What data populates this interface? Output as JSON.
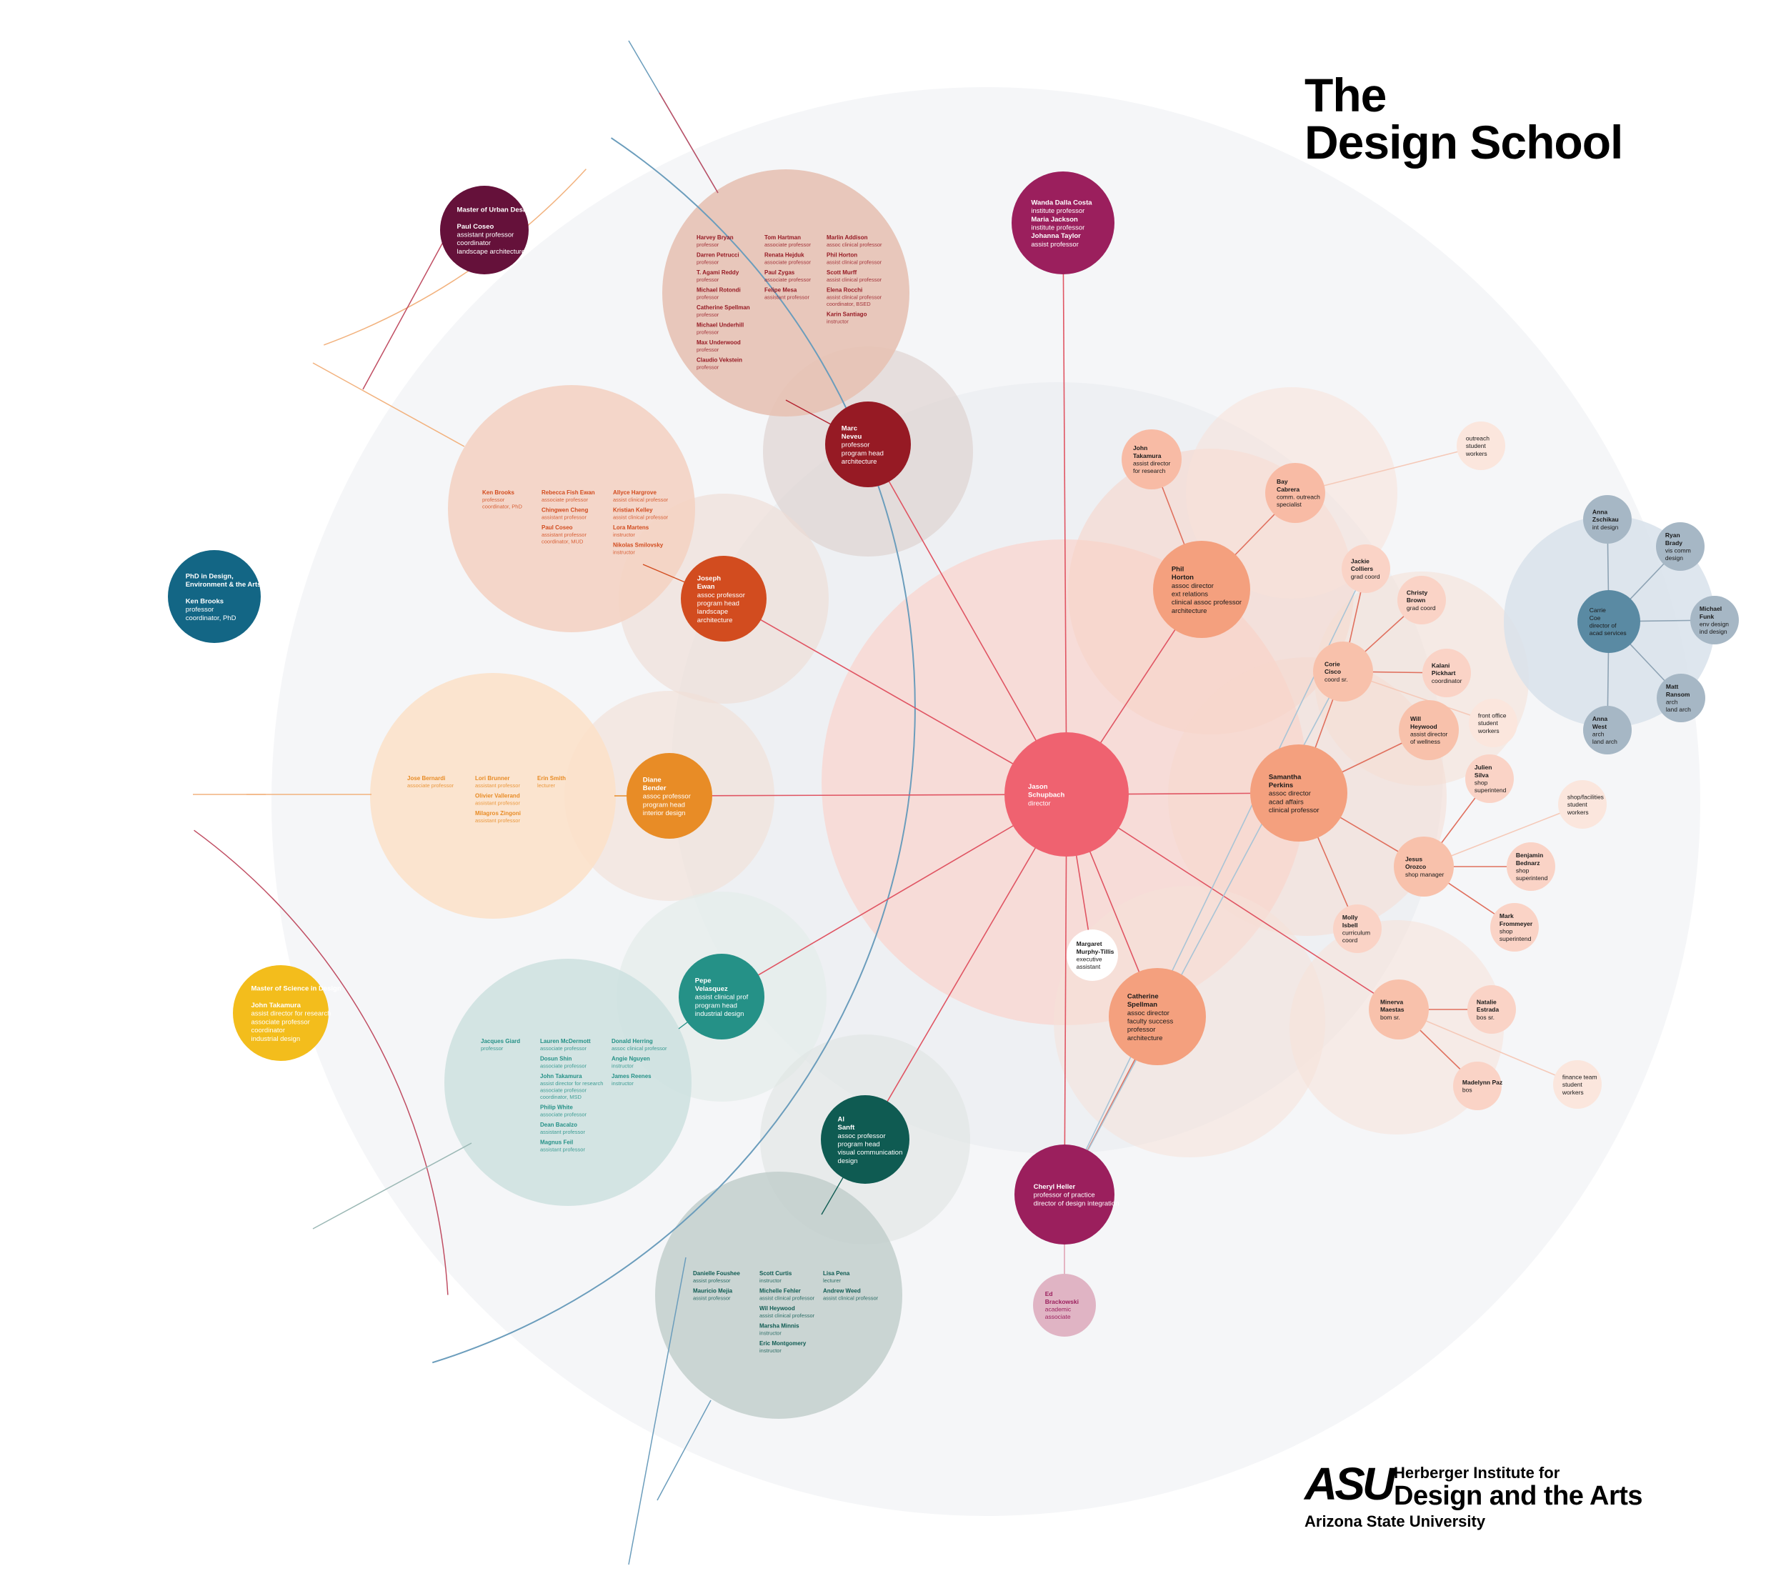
{
  "title": {
    "line1": "The",
    "line2": "Design School"
  },
  "logo": {
    "mark": "ASU",
    "line1": "Herberger Institute for",
    "line2": "Design and the Arts",
    "line3": "Arizona State University"
  },
  "colors": {
    "director": "#ef6270",
    "architecture": "#961a24",
    "landscape": "#d24c1f",
    "interior": "#e88c26",
    "industrial": "#259187",
    "viscomm": "#0f5b52",
    "institute": "#9b1f5d",
    "phd": "#136685",
    "mud": "#65113a",
    "msd": "#f3bd1c",
    "staff": "#f4a07e",
    "acad": "#5a8aa3"
  },
  "nodes": [
    {
      "id": "director",
      "lines": [
        {
          "t": "Jason",
          "b": true
        },
        {
          "t": "Schupbach",
          "b": true
        },
        {
          "t": "director"
        }
      ]
    },
    {
      "id": "marc",
      "lines": [
        {
          "t": "Marc",
          "b": true
        },
        {
          "t": "Neveu",
          "b": true
        },
        {
          "t": "professor"
        },
        {
          "t": "program head"
        },
        {
          "t": "architecture"
        }
      ]
    },
    {
      "id": "joseph",
      "lines": [
        {
          "t": "Joseph",
          "b": true
        },
        {
          "t": "Ewan",
          "b": true
        },
        {
          "t": "assoc professor"
        },
        {
          "t": "program head"
        },
        {
          "t": "landscape"
        },
        {
          "t": "architecture"
        }
      ]
    },
    {
      "id": "diane",
      "lines": [
        {
          "t": "Diane",
          "b": true
        },
        {
          "t": "Bender",
          "b": true
        },
        {
          "t": "assoc professor"
        },
        {
          "t": "program head"
        },
        {
          "t": "interior design"
        }
      ]
    },
    {
      "id": "pepe",
      "lines": [
        {
          "t": "Pepe",
          "b": true
        },
        {
          "t": "Velasquez",
          "b": true
        },
        {
          "t": "assist clinical prof"
        },
        {
          "t": "program head"
        },
        {
          "t": "industrial design"
        }
      ]
    },
    {
      "id": "al",
      "lines": [
        {
          "t": "Al",
          "b": true
        },
        {
          "t": "Sanft",
          "b": true
        },
        {
          "t": "assoc professor"
        },
        {
          "t": "program head"
        },
        {
          "t": "visual communication"
        },
        {
          "t": "design"
        }
      ]
    },
    {
      "id": "cheryl",
      "lines": [
        {
          "t": "Cheryl Heller",
          "b": true
        },
        {
          "t": "professor of practice"
        },
        {
          "t": "director of design integration"
        }
      ]
    },
    {
      "id": "ed",
      "lines": [
        {
          "t": "Ed",
          "b": true
        },
        {
          "t": "Brackowski",
          "b": true
        },
        {
          "t": "academic"
        },
        {
          "t": "associate"
        }
      ]
    },
    {
      "id": "wanda",
      "lines": [
        {
          "t": "Wanda Dalla Costa",
          "b": true
        },
        {
          "t": "institute professor"
        },
        {
          "t": "Maria Jackson",
          "b": true
        },
        {
          "t": "institute professor"
        },
        {
          "t": "Johanna Taylor",
          "b": true
        },
        {
          "t": "assist professor"
        }
      ]
    },
    {
      "id": "phil",
      "lines": [
        {
          "t": "Phil",
          "b": true
        },
        {
          "t": "Horton",
          "b": true
        },
        {
          "t": "assoc director"
        },
        {
          "t": "ext relations"
        },
        {
          "t": "clinical assoc professor"
        },
        {
          "t": "architecture"
        }
      ]
    },
    {
      "id": "samantha",
      "lines": [
        {
          "t": "Samantha",
          "b": true
        },
        {
          "t": "Perkins",
          "b": true
        },
        {
          "t": "assoc director"
        },
        {
          "t": "acad affairs"
        },
        {
          "t": "clinical professor"
        }
      ]
    },
    {
      "id": "catherine",
      "lines": [
        {
          "t": "Catherine",
          "b": true
        },
        {
          "t": "Spellman",
          "b": true
        },
        {
          "t": "assoc director"
        },
        {
          "t": "faculty success"
        },
        {
          "t": "professor"
        },
        {
          "t": "architecture"
        }
      ]
    },
    {
      "id": "margaret",
      "lines": [
        {
          "t": "Margaret",
          "b": true
        },
        {
          "t": "Murphy-Tillis",
          "b": true
        },
        {
          "t": "executive"
        },
        {
          "t": "assistant"
        }
      ]
    },
    {
      "id": "john",
      "lines": [
        {
          "t": "John",
          "b": true
        },
        {
          "t": "Takamura",
          "b": true
        },
        {
          "t": "assist director"
        },
        {
          "t": "for research"
        }
      ]
    },
    {
      "id": "bay",
      "lines": [
        {
          "t": "Bay",
          "b": true
        },
        {
          "t": "Cabrera",
          "b": true
        },
        {
          "t": "comm. outreach"
        },
        {
          "t": "specialist"
        }
      ]
    },
    {
      "id": "outreach",
      "lines": [
        {
          "t": "outreach"
        },
        {
          "t": "student"
        },
        {
          "t": "workers"
        }
      ]
    },
    {
      "id": "jackie",
      "lines": [
        {
          "t": "Jackie",
          "b": true
        },
        {
          "t": "Colliers",
          "b": true
        },
        {
          "t": "grad coord"
        }
      ]
    },
    {
      "id": "christy",
      "lines": [
        {
          "t": "Christy",
          "b": true
        },
        {
          "t": "Brown",
          "b": true
        },
        {
          "t": "grad coord"
        }
      ]
    },
    {
      "id": "corie",
      "lines": [
        {
          "t": "Corie",
          "b": true
        },
        {
          "t": "Cisco",
          "b": true
        },
        {
          "t": "coord sr."
        }
      ]
    },
    {
      "id": "kalani",
      "lines": [
        {
          "t": "Kalani",
          "b": true
        },
        {
          "t": "Pickhart",
          "b": true
        },
        {
          "t": "coordinator"
        }
      ]
    },
    {
      "id": "frontoffice",
      "lines": [
        {
          "t": "front office"
        },
        {
          "t": "student"
        },
        {
          "t": "workers"
        }
      ]
    },
    {
      "id": "will",
      "lines": [
        {
          "t": "Will",
          "b": true
        },
        {
          "t": "Heywood",
          "b": true
        },
        {
          "t": "assist director"
        },
        {
          "t": "of wellness"
        }
      ]
    },
    {
      "id": "julien",
      "lines": [
        {
          "t": "Julien",
          "b": true
        },
        {
          "t": "Silva",
          "b": true
        },
        {
          "t": "shop"
        },
        {
          "t": "superintend"
        }
      ]
    },
    {
      "id": "shopfac",
      "lines": [
        {
          "t": "shop/facilities"
        },
        {
          "t": "student"
        },
        {
          "t": "workers"
        }
      ]
    },
    {
      "id": "jesus",
      "lines": [
        {
          "t": "Jesus",
          "b": true
        },
        {
          "t": "Orozco",
          "b": true
        },
        {
          "t": "shop manager"
        }
      ]
    },
    {
      "id": "benjamin",
      "lines": [
        {
          "t": "Benjamin",
          "b": true
        },
        {
          "t": "Bednarz",
          "b": true
        },
        {
          "t": "shop"
        },
        {
          "t": "superintend"
        }
      ]
    },
    {
      "id": "mark",
      "lines": [
        {
          "t": "Mark",
          "b": true
        },
        {
          "t": "Frommeyer",
          "b": true
        },
        {
          "t": "shop"
        },
        {
          "t": "superintend"
        }
      ]
    },
    {
      "id": "molly",
      "lines": [
        {
          "t": "Molly",
          "b": true
        },
        {
          "t": "Isbell",
          "b": true
        },
        {
          "t": "curriculum"
        },
        {
          "t": "coord"
        }
      ]
    },
    {
      "id": "minerva",
      "lines": [
        {
          "t": "Minerva",
          "b": true
        },
        {
          "t": "Maestas",
          "b": true
        },
        {
          "t": "bom sr."
        }
      ]
    },
    {
      "id": "natalie",
      "lines": [
        {
          "t": "Natalie",
          "b": true
        },
        {
          "t": "Estrada",
          "b": true
        },
        {
          "t": "bos sr."
        }
      ]
    },
    {
      "id": "madelynn",
      "lines": [
        {
          "t": "Madelynn Paz",
          "b": true
        },
        {
          "t": "bos"
        }
      ]
    },
    {
      "id": "finance",
      "lines": [
        {
          "t": "finance team"
        },
        {
          "t": "student"
        },
        {
          "t": "workers"
        }
      ]
    },
    {
      "id": "carrie",
      "lines": [
        {
          "t": "Carrie"
        },
        {
          "t": "Coe"
        },
        {
          "t": "director of"
        },
        {
          "t": "acad services"
        }
      ]
    },
    {
      "id": "annaz",
      "lines": [
        {
          "t": "Anna",
          "b": true
        },
        {
          "t": "Zschikau",
          "b": true
        },
        {
          "t": "int design"
        }
      ]
    },
    {
      "id": "ryan",
      "lines": [
        {
          "t": "Ryan",
          "b": true
        },
        {
          "t": "Brady",
          "b": true
        },
        {
          "t": "vis comm"
        },
        {
          "t": "design"
        }
      ]
    },
    {
      "id": "michael",
      "lines": [
        {
          "t": "Michael",
          "b": true
        },
        {
          "t": "Funk",
          "b": true
        },
        {
          "t": "env design"
        },
        {
          "t": "ind design"
        }
      ]
    },
    {
      "id": "matt",
      "lines": [
        {
          "t": "Matt",
          "b": true
        },
        {
          "t": "Ransom",
          "b": true
        },
        {
          "t": "arch"
        },
        {
          "t": "land arch"
        }
      ]
    },
    {
      "id": "annaw",
      "lines": [
        {
          "t": "Anna",
          "b": true
        },
        {
          "t": "West",
          "b": true
        },
        {
          "t": "arch"
        },
        {
          "t": "land arch"
        }
      ]
    },
    {
      "id": "phd",
      "lines": [
        {
          "t": "PhD in Design,",
          "b": true
        },
        {
          "t": "Environment & the Arts",
          "b": true
        },
        {
          "t": ""
        },
        {
          "t": "Ken Brooks",
          "b": true
        },
        {
          "t": "professor"
        },
        {
          "t": "coordinator, PhD"
        }
      ]
    },
    {
      "id": "mud",
      "lines": [
        {
          "t": "Master of Urban Design",
          "b": true
        },
        {
          "t": ""
        },
        {
          "t": "Paul Coseo",
          "b": true
        },
        {
          "t": "assistant professor"
        },
        {
          "t": "coordinator"
        },
        {
          "t": "landscape architecture"
        }
      ]
    },
    {
      "id": "msd",
      "lines": [
        {
          "t": "Master of Science in Design",
          "b": true
        },
        {
          "t": ""
        },
        {
          "t": "John Takamura",
          "b": true
        },
        {
          "t": "assist director for research"
        },
        {
          "t": "associate professor"
        },
        {
          "t": "coordinator"
        },
        {
          "t": "industrial design"
        }
      ]
    }
  ],
  "faculty": {
    "architecture": [
      [
        {
          "n": "Harvey Bryan",
          "r": "professor"
        },
        {
          "n": "Darren Petrucci",
          "r": "professor"
        },
        {
          "n": "T. Agami Reddy",
          "r": "professor"
        },
        {
          "n": "Michael Rotondi",
          "r": "professor"
        },
        {
          "n": "Catherine Spellman",
          "r": "professor"
        },
        {
          "n": "Michael Underhill",
          "r": "professor"
        },
        {
          "n": "Max Underwood",
          "r": "professor"
        },
        {
          "n": "Claudio Vekstein",
          "r": "professor"
        }
      ],
      [
        {
          "n": "Tom Hartman",
          "r": "associate professor"
        },
        {
          "n": "Renata Hejduk",
          "r": "associate professor"
        },
        {
          "n": "Paul Zygas",
          "r": "associate professor"
        },
        {
          "n": "Felipe Mesa",
          "r": "assistant professor"
        }
      ],
      [
        {
          "n": "Marlin Addison",
          "r": "assoc clinical professor"
        },
        {
          "n": "Phil Horton",
          "r": "assist clinical professor"
        },
        {
          "n": "Scott Murff",
          "r": "assist clinical professor"
        },
        {
          "n": "Elena Rocchi",
          "r": "assist clinical professor",
          "r2": "coordinator, BSED"
        },
        {
          "n": "Karin Santiago",
          "r": "instructor"
        }
      ]
    ],
    "landscape": [
      [
        {
          "n": "Ken Brooks",
          "r": "professor",
          "r2": "coordinator, PhD"
        }
      ],
      [
        {
          "n": "Rebecca Fish Ewan",
          "r": "associate professor"
        },
        {
          "n": "Chingwen Cheng",
          "r": "assistant professor"
        },
        {
          "n": "Paul Coseo",
          "r": "assistant professor",
          "r2": "coordinator, MUD"
        }
      ],
      [
        {
          "n": "Allyce Hargrove",
          "r": "assist clinical professor"
        },
        {
          "n": "Kristian Kelley",
          "r": "assist clinical professor"
        },
        {
          "n": "Lora Martens",
          "r": "instructor"
        },
        {
          "n": "Nikolas Smilovsky",
          "r": "instructor"
        }
      ]
    ],
    "interior": [
      [
        {
          "n": "Jose Bernardi",
          "r": "associate professor"
        }
      ],
      [
        {
          "n": "Lori Brunner",
          "r": "assistant professor"
        },
        {
          "n": "Olivier Vallerand",
          "r": "assistant professor"
        },
        {
          "n": "Milagros Zingoni",
          "r": "assistant professor"
        }
      ],
      [
        {
          "n": "Erin Smith",
          "r": "lecturer"
        }
      ]
    ],
    "industrial": [
      [
        {
          "n": "Jacques Giard",
          "r": "professor"
        }
      ],
      [
        {
          "n": "Lauren McDermott",
          "r": "associate professor"
        },
        {
          "n": "Dosun Shin",
          "r": "associate professor"
        },
        {
          "n": "John Takamura",
          "r": "assist director for research",
          "r2": "associate professor",
          "r3": "coordinator, MSD"
        },
        {
          "n": "Philip White",
          "r": "associate professor"
        },
        {
          "n": "Dean Bacalzo",
          "r": "assistant professor"
        },
        {
          "n": "Magnus Feil",
          "r": "assistant professor"
        }
      ],
      [
        {
          "n": "Donald Herring",
          "r": "assoc clinical professor"
        },
        {
          "n": "Angie Nguyen",
          "r": "instructor"
        },
        {
          "n": "James Reenes",
          "r": "instructor"
        }
      ]
    ],
    "viscomm": [
      [
        {
          "n": "Danielle Foushee",
          "r": "assist professor"
        },
        {
          "n": "Mauricio Mejia",
          "r": "assist professor"
        }
      ],
      [
        {
          "n": "Scott Curtis",
          "r": "instructor"
        },
        {
          "n": "Michelle Fehler",
          "r": "assist clinical professor"
        },
        {
          "n": "Wil Heywood",
          "r": "assist clinical professor"
        },
        {
          "n": "Marsha Minnis",
          "r": "instructor"
        },
        {
          "n": "Eric Montgomery",
          "r": "instructor"
        }
      ],
      [
        {
          "n": "Lisa Pena",
          "r": "lecturer"
        },
        {
          "n": "Andrew Weed",
          "r": "assist clinical professor"
        }
      ]
    ]
  }
}
